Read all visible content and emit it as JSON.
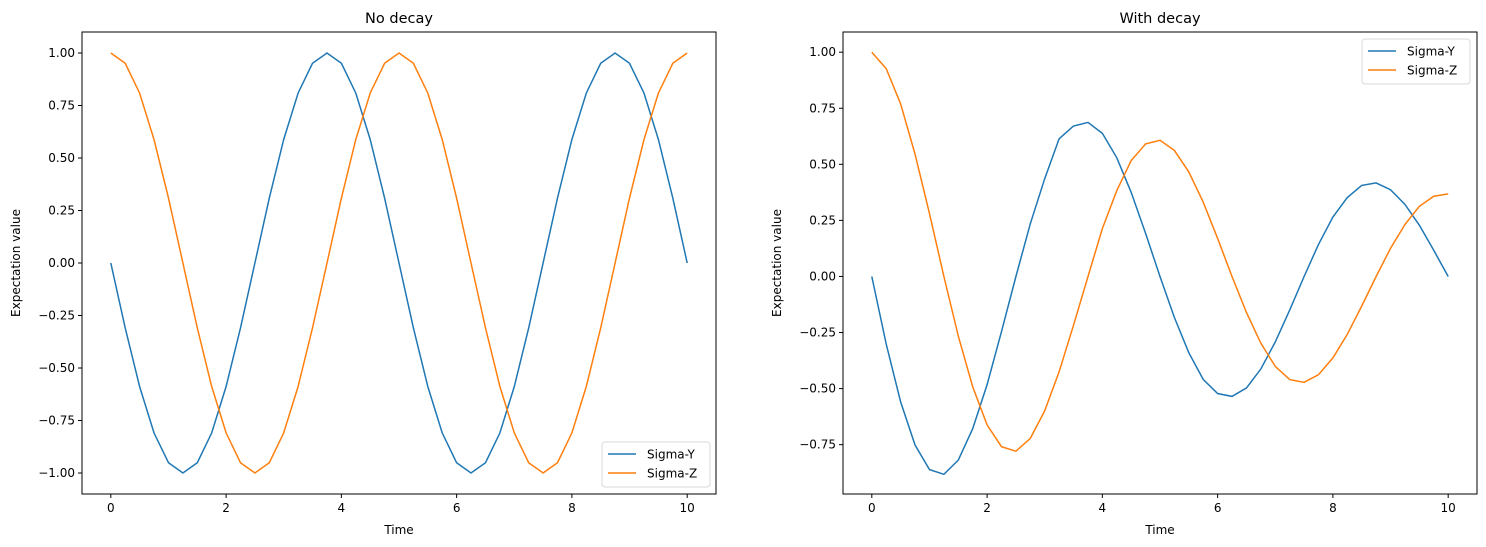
{
  "chart_data": [
    {
      "type": "line",
      "title": "No decay",
      "xlabel": "Time",
      "ylabel": "Expectation value",
      "xlim": [
        -0.5,
        10.5
      ],
      "ylim": [
        -1.1,
        1.1
      ],
      "xticks": [
        0,
        2,
        4,
        6,
        8,
        10
      ],
      "xtick_labels": [
        "0",
        "2",
        "4",
        "6",
        "8",
        "10"
      ],
      "yticks": [
        1.0,
        0.75,
        0.5,
        0.25,
        0.0,
        -0.25,
        -0.5,
        -0.75,
        -1.0
      ],
      "ytick_labels": [
        "1.00",
        "0.75",
        "0.50",
        "0.25",
        "0.00",
        "−0.25",
        "−0.50",
        "−0.75",
        "−1.00"
      ],
      "grid": false,
      "legend_position": "lower right",
      "x": [
        0,
        0.25,
        0.5,
        0.75,
        1,
        1.25,
        1.5,
        1.75,
        2,
        2.25,
        2.5,
        2.75,
        3,
        3.25,
        3.5,
        3.75,
        4,
        4.25,
        4.5,
        4.75,
        5,
        5.25,
        5.5,
        5.75,
        6,
        6.25,
        6.5,
        6.75,
        7,
        7.25,
        7.5,
        7.75,
        8,
        8.25,
        8.5,
        8.75,
        9,
        9.25,
        9.5,
        9.75,
        10
      ],
      "series": [
        {
          "name": "Sigma-Y",
          "color": "#1f77b4",
          "values": [
            0,
            -0.309,
            -0.588,
            -0.809,
            -0.951,
            -1,
            -0.951,
            -0.809,
            -0.588,
            -0.309,
            0,
            0.309,
            0.588,
            0.809,
            0.951,
            1,
            0.951,
            0.809,
            0.588,
            0.309,
            0,
            -0.309,
            -0.588,
            -0.809,
            -0.951,
            -1,
            -0.951,
            -0.809,
            -0.588,
            -0.309,
            0,
            0.309,
            0.588,
            0.809,
            0.951,
            1,
            0.951,
            0.809,
            0.588,
            0.309,
            0
          ]
        },
        {
          "name": "Sigma-Z",
          "color": "#ff7f0e",
          "values": [
            1,
            0.951,
            0.809,
            0.588,
            0.309,
            0,
            -0.309,
            -0.588,
            -0.809,
            -0.951,
            -1,
            -0.951,
            -0.809,
            -0.588,
            -0.309,
            0,
            0.309,
            0.588,
            0.809,
            0.951,
            1,
            0.951,
            0.809,
            0.588,
            0.309,
            0,
            -0.309,
            -0.588,
            -0.809,
            -0.951,
            -1,
            -0.951,
            -0.809,
            -0.588,
            -0.309,
            0,
            0.309,
            0.588,
            0.809,
            0.951,
            1
          ]
        }
      ]
    },
    {
      "type": "line",
      "title": "With decay",
      "xlabel": "Time",
      "ylabel": "Expectation value",
      "xlim": [
        -0.5,
        10.5
      ],
      "ylim": [
        -0.97,
        1.09
      ],
      "xticks": [
        0,
        2,
        4,
        6,
        8,
        10
      ],
      "xtick_labels": [
        "0",
        "2",
        "4",
        "6",
        "8",
        "10"
      ],
      "yticks": [
        1.0,
        0.75,
        0.5,
        0.25,
        0.0,
        -0.25,
        -0.5,
        -0.75
      ],
      "ytick_labels": [
        "1.00",
        "0.75",
        "0.50",
        "0.25",
        "0.00",
        "−0.25",
        "−0.50",
        "−0.75"
      ],
      "grid": false,
      "legend_position": "upper right",
      "x": [
        0,
        0.25,
        0.5,
        0.75,
        1,
        1.25,
        1.5,
        1.75,
        2,
        2.25,
        2.5,
        2.75,
        3,
        3.25,
        3.5,
        3.75,
        4,
        4.25,
        4.5,
        4.75,
        5,
        5.25,
        5.5,
        5.75,
        6,
        6.25,
        6.5,
        6.75,
        7,
        7.25,
        7.5,
        7.75,
        8,
        8.25,
        8.5,
        8.75,
        9,
        9.25,
        9.5,
        9.75,
        10
      ],
      "series": [
        {
          "name": "Sigma-Y",
          "color": "#1f77b4",
          "values": [
            0,
            -0.301,
            -0.559,
            -0.751,
            -0.861,
            -0.882,
            -0.819,
            -0.679,
            -0.482,
            -0.246,
            0,
            0.235,
            0.436,
            0.614,
            0.671,
            0.687,
            0.638,
            0.529,
            0.375,
            0.192,
            0,
            -0.183,
            -0.34,
            -0.459,
            -0.522,
            -0.535,
            -0.497,
            -0.412,
            -0.292,
            -0.15,
            0,
            0.143,
            0.265,
            0.352,
            0.406,
            0.417,
            0.387,
            0.321,
            0.228,
            0.116,
            0
          ]
        },
        {
          "name": "Sigma-Z",
          "color": "#ff7f0e",
          "values": [
            1,
            0.927,
            0.77,
            0.546,
            0.28,
            0,
            -0.266,
            -0.492,
            -0.662,
            -0.759,
            -0.779,
            -0.722,
            -0.599,
            -0.425,
            -0.218,
            0,
            0.214,
            0.383,
            0.517,
            0.591,
            0.607,
            0.562,
            0.466,
            0.331,
            0.17,
            0,
            -0.161,
            -0.298,
            -0.401,
            -0.46,
            -0.472,
            -0.438,
            -0.363,
            -0.258,
            -0.132,
            0,
            0.125,
            0.232,
            0.313,
            0.358,
            0.368
          ]
        }
      ]
    }
  ]
}
